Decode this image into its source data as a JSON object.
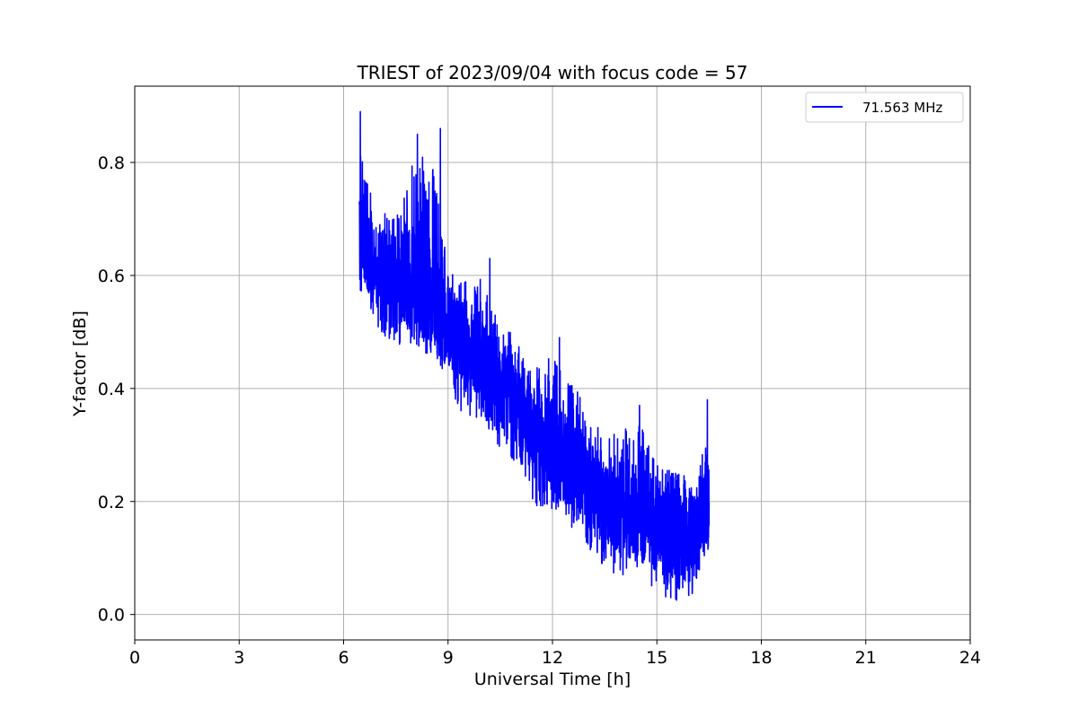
{
  "chart_data": {
    "type": "line",
    "title": "TRIEST of 2023/09/04 with focus code = 57",
    "xlabel": "Universal Time [h]",
    "ylabel": "Y-factor [dB]",
    "xlim": [
      0,
      24
    ],
    "ylim": [
      -0.045,
      0.935
    ],
    "xticks": [
      0,
      3,
      6,
      9,
      12,
      15,
      18,
      21,
      24
    ],
    "yticks": [
      0.0,
      0.2,
      0.4,
      0.6,
      0.8
    ],
    "ytick_labels": [
      "0.0",
      "0.2",
      "0.4",
      "0.6",
      "0.8"
    ],
    "grid": true,
    "legend_position": "top-right",
    "series": [
      {
        "name": "71.563 MHz",
        "color": "#0000ff",
        "trend": {
          "x": [
            6.45,
            6.6,
            7.0,
            7.5,
            8.0,
            8.5,
            9.0,
            9.5,
            10.0,
            10.5,
            11.0,
            11.5,
            12.0,
            12.5,
            13.0,
            13.5,
            14.0,
            14.5,
            15.0,
            15.5,
            16.0,
            16.5
          ],
          "mean": [
            0.66,
            0.65,
            0.62,
            0.6,
            0.59,
            0.56,
            0.51,
            0.47,
            0.44,
            0.41,
            0.37,
            0.32,
            0.29,
            0.26,
            0.23,
            0.2,
            0.19,
            0.18,
            0.15,
            0.14,
            0.14,
            0.2
          ],
          "min": [
            0.56,
            0.54,
            0.47,
            0.45,
            0.45,
            0.47,
            0.39,
            0.32,
            0.33,
            0.27,
            0.25,
            0.17,
            0.16,
            0.14,
            0.1,
            0.06,
            0.04,
            0.05,
            0.02,
            0.0,
            0.0,
            0.1
          ],
          "max": [
            0.89,
            0.8,
            0.74,
            0.72,
            0.84,
            0.86,
            0.64,
            0.61,
            0.63,
            0.56,
            0.5,
            0.46,
            0.49,
            0.45,
            0.39,
            0.33,
            0.35,
            0.37,
            0.3,
            0.27,
            0.26,
            0.38
          ]
        },
        "annotated_peaks": [
          {
            "x": 6.48,
            "y": 0.89
          },
          {
            "x": 8.12,
            "y": 0.85
          },
          {
            "x": 8.78,
            "y": 0.86
          },
          {
            "x": 10.2,
            "y": 0.63
          },
          {
            "x": 12.2,
            "y": 0.49
          },
          {
            "x": 14.5,
            "y": 0.37
          },
          {
            "x": 16.45,
            "y": 0.38
          }
        ]
      }
    ]
  }
}
